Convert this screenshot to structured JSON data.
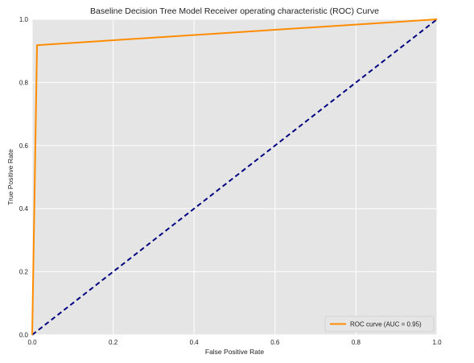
{
  "chart_data": {
    "type": "line",
    "title": "Baseline Decision Tree Model Receiver operating characteristic (ROC) Curve",
    "xlabel": "False Positive Rate",
    "ylabel": "True Positive Rate",
    "xlim": [
      0.0,
      1.0
    ],
    "ylim": [
      0.0,
      1.0
    ],
    "xticks": [
      "0.0",
      "0.2",
      "0.4",
      "0.6",
      "0.8",
      "1.0"
    ],
    "yticks": [
      "0.0",
      "0.2",
      "0.4",
      "0.6",
      "0.8",
      "1.0"
    ],
    "grid": true,
    "legend_position": "lower-right",
    "series": [
      {
        "name": "ROC curve (AUC = 0.95)",
        "color": "#ff8c00",
        "style": "solid",
        "x": [
          0.0,
          0.012,
          1.0
        ],
        "y": [
          0.0,
          0.918,
          1.0
        ]
      },
      {
        "color": "#000080",
        "style": "dashed",
        "x": [
          0.0,
          1.0
        ],
        "y": [
          0.0,
          1.0
        ]
      }
    ]
  },
  "colors": {
    "plot_background": "#e5e5e5",
    "grid": "#ffffff"
  }
}
